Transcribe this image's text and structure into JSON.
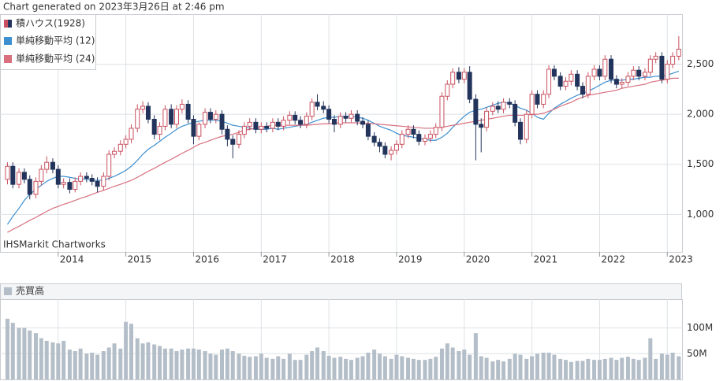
{
  "header": "Chart generated on 2023年3月26日 at 2:46 pm",
  "chart_data": [
    {
      "type": "candlestick",
      "name": "積ハウス(1928)",
      "up_color": "#c8505f",
      "down_color": "#23345c",
      "source": "IHSMarkit Chartworks",
      "x": [
        2013.25,
        2013.33,
        2013.42,
        2013.5,
        2013.58,
        2013.67,
        2013.75,
        2013.83,
        2013.92,
        2014,
        2014.08,
        2014.17,
        2014.25,
        2014.33,
        2014.42,
        2014.5,
        2014.58,
        2014.67,
        2014.75,
        2014.83,
        2014.92,
        2015,
        2015.08,
        2015.17,
        2015.25,
        2015.33,
        2015.42,
        2015.5,
        2015.58,
        2015.67,
        2015.75,
        2015.83,
        2015.92,
        2016,
        2016.08,
        2016.17,
        2016.25,
        2016.33,
        2016.42,
        2016.5,
        2016.58,
        2016.67,
        2016.75,
        2016.83,
        2016.92,
        2017,
        2017.08,
        2017.17,
        2017.25,
        2017.33,
        2017.42,
        2017.5,
        2017.58,
        2017.67,
        2017.75,
        2017.83,
        2017.92,
        2018,
        2018.08,
        2018.17,
        2018.25,
        2018.33,
        2018.42,
        2018.5,
        2018.58,
        2018.67,
        2018.75,
        2018.83,
        2018.92,
        2019,
        2019.08,
        2019.17,
        2019.25,
        2019.33,
        2019.42,
        2019.5,
        2019.58,
        2019.67,
        2019.75,
        2019.83,
        2019.92,
        2020,
        2020.08,
        2020.17,
        2020.25,
        2020.33,
        2020.42,
        2020.5,
        2020.58,
        2020.67,
        2020.75,
        2020.83,
        2020.92,
        2021,
        2021.08,
        2021.17,
        2021.25,
        2021.33,
        2021.42,
        2021.5,
        2021.58,
        2021.67,
        2021.75,
        2021.83,
        2021.92,
        2022,
        2022.08,
        2022.17,
        2022.25,
        2022.33,
        2022.42,
        2022.5,
        2022.58,
        2022.67,
        2022.75,
        2022.83,
        2022.92,
        2023,
        2023.08,
        2023.17
      ],
      "open": [
        1350,
        1480,
        1300,
        1420,
        1350,
        1200,
        1330,
        1450,
        1520,
        1450,
        1300,
        1320,
        1250,
        1330,
        1380,
        1360,
        1330,
        1280,
        1380,
        1600,
        1630,
        1700,
        1750,
        1860,
        2050,
        2080,
        1950,
        1800,
        1880,
        2050,
        1900,
        2050,
        2100,
        1950,
        1780,
        1900,
        2020,
        1950,
        2000,
        1850,
        1750,
        1700,
        1800,
        1880,
        1920,
        1850,
        1880,
        1860,
        1920,
        1880,
        1940,
        1990,
        1940,
        1900,
        1980,
        2120,
        2080,
        2050,
        1950,
        1900,
        1980,
        1960,
        2000,
        1930,
        1900,
        1780,
        1720,
        1680,
        1600,
        1640,
        1700,
        1800,
        1850,
        1800,
        1730,
        1760,
        1800,
        1870,
        2180,
        2300,
        2420,
        2350,
        2420,
        2150,
        1900,
        1870,
        2030,
        2080,
        2050,
        2120,
        2100,
        1920,
        1750,
        2000,
        2200,
        2100,
        2200,
        2450,
        2380,
        2280,
        2330,
        2400,
        2280,
        2200,
        2380,
        2450,
        2380,
        2550,
        2350,
        2300,
        2320,
        2380,
        2440,
        2380,
        2420,
        2550,
        2580,
        2350,
        2500,
        2580
      ],
      "high": [
        1520,
        1520,
        1460,
        1460,
        1390,
        1370,
        1490,
        1580,
        1560,
        1490,
        1360,
        1360,
        1370,
        1420,
        1420,
        1400,
        1370,
        1420,
        1640,
        1670,
        1740,
        1790,
        1900,
        2100,
        2130,
        2120,
        1990,
        1920,
        2090,
        2100,
        2090,
        2150,
        2140,
        1990,
        1920,
        2060,
        2060,
        2040,
        2040,
        1890,
        1790,
        1840,
        1920,
        1960,
        1960,
        1920,
        1920,
        1960,
        1960,
        1980,
        2030,
        2030,
        1980,
        2020,
        2160,
        2200,
        2130,
        2090,
        1990,
        2020,
        2020,
        2040,
        2040,
        1970,
        1940,
        1820,
        1760,
        1720,
        1680,
        1740,
        1840,
        1890,
        1890,
        1840,
        1800,
        1840,
        1910,
        2220,
        2340,
        2460,
        2470,
        2460,
        2480,
        2200,
        1960,
        2070,
        2120,
        2130,
        2160,
        2160,
        2140,
        1960,
        2040,
        2240,
        2240,
        2240,
        2490,
        2490,
        2420,
        2370,
        2440,
        2440,
        2320,
        2420,
        2490,
        2490,
        2590,
        2590,
        2390,
        2360,
        2420,
        2480,
        2480,
        2460,
        2590,
        2620,
        2620,
        2540,
        2620,
        2780
      ],
      "low": [
        1300,
        1260,
        1260,
        1310,
        1150,
        1160,
        1290,
        1410,
        1410,
        1260,
        1260,
        1210,
        1220,
        1290,
        1320,
        1290,
        1220,
        1240,
        1340,
        1560,
        1590,
        1660,
        1710,
        1820,
        2010,
        1910,
        1750,
        1740,
        1840,
        1860,
        1860,
        2010,
        1910,
        1700,
        1740,
        1860,
        1910,
        1910,
        1800,
        1680,
        1560,
        1660,
        1760,
        1840,
        1810,
        1810,
        1820,
        1820,
        1840,
        1840,
        1900,
        1900,
        1860,
        1860,
        1940,
        2040,
        2010,
        1910,
        1820,
        1860,
        1920,
        1920,
        1890,
        1860,
        1740,
        1680,
        1620,
        1560,
        1540,
        1600,
        1660,
        1760,
        1760,
        1690,
        1690,
        1720,
        1760,
        1830,
        2140,
        2260,
        2310,
        2310,
        2110,
        1540,
        1620,
        1830,
        1990,
        2010,
        2010,
        2060,
        1880,
        1700,
        1710,
        1960,
        2060,
        2060,
        2160,
        2340,
        2240,
        2240,
        2290,
        2240,
        2160,
        2160,
        2340,
        2340,
        2340,
        2310,
        2260,
        2260,
        2280,
        2340,
        2340,
        2340,
        2380,
        2510,
        2310,
        2310,
        2460,
        2540
      ],
      "close": [
        1480,
        1300,
        1420,
        1350,
        1200,
        1330,
        1450,
        1520,
        1450,
        1300,
        1320,
        1250,
        1330,
        1380,
        1360,
        1330,
        1280,
        1380,
        1600,
        1630,
        1700,
        1750,
        1860,
        2050,
        2080,
        1950,
        1800,
        1880,
        2050,
        1900,
        2050,
        2100,
        1950,
        1780,
        1900,
        2020,
        1950,
        2000,
        1850,
        1750,
        1700,
        1800,
        1880,
        1920,
        1850,
        1880,
        1860,
        1920,
        1880,
        1940,
        1990,
        1940,
        1900,
        1980,
        2120,
        2080,
        2050,
        1950,
        1900,
        1980,
        1960,
        2000,
        1930,
        1900,
        1780,
        1720,
        1680,
        1600,
        1640,
        1700,
        1800,
        1850,
        1800,
        1730,
        1760,
        1800,
        1870,
        2180,
        2300,
        2420,
        2350,
        2420,
        2150,
        1900,
        1870,
        2030,
        2080,
        2050,
        2120,
        2100,
        1920,
        1750,
        2000,
        2200,
        2100,
        2200,
        2450,
        2380,
        2280,
        2330,
        2400,
        2280,
        2200,
        2380,
        2450,
        2380,
        2550,
        2350,
        2300,
        2320,
        2380,
        2440,
        2380,
        2420,
        2550,
        2580,
        2350,
        2500,
        2580,
        2650
      ],
      "series": [
        {
          "name": "単純移動平均 (12)",
          "color": "#3d8fd0",
          "values": [
            900,
            980,
            1060,
            1140,
            1200,
            1250,
            1290,
            1330,
            1360,
            1380,
            1380,
            1370,
            1360,
            1350,
            1350,
            1340,
            1340,
            1340,
            1360,
            1380,
            1410,
            1440,
            1480,
            1540,
            1600,
            1650,
            1690,
            1730,
            1770,
            1810,
            1850,
            1880,
            1900,
            1920,
            1930,
            1940,
            1940,
            1940,
            1930,
            1910,
            1890,
            1880,
            1870,
            1860,
            1850,
            1850,
            1850,
            1860,
            1850,
            1860,
            1870,
            1880,
            1890,
            1900,
            1920,
            1940,
            1960,
            1970,
            1970,
            1980,
            1980,
            1980,
            1970,
            1960,
            1940,
            1910,
            1880,
            1860,
            1840,
            1810,
            1790,
            1780,
            1770,
            1760,
            1750,
            1740,
            1740,
            1770,
            1810,
            1870,
            1930,
            1980,
            2020,
            2040,
            2050,
            2070,
            2090,
            2110,
            2120,
            2110,
            2090,
            2060,
            2040,
            2010,
            1970,
            1950,
            2010,
            2060,
            2100,
            2130,
            2160,
            2190,
            2210,
            2230,
            2260,
            2290,
            2320,
            2340,
            2340,
            2340,
            2350,
            2350,
            2360,
            2370,
            2370,
            2380,
            2380,
            2390,
            2410,
            2430
          ]
        },
        {
          "name": "単純移動平均 (24)",
          "color": "#d8707f",
          "values": [
            820,
            850,
            880,
            910,
            940,
            970,
            1000,
            1030,
            1060,
            1080,
            1100,
            1120,
            1140,
            1160,
            1180,
            1200,
            1220,
            1240,
            1260,
            1280,
            1300,
            1320,
            1340,
            1370,
            1400,
            1430,
            1460,
            1490,
            1520,
            1550,
            1580,
            1610,
            1640,
            1670,
            1700,
            1720,
            1740,
            1760,
            1780,
            1790,
            1800,
            1820,
            1840,
            1850,
            1860,
            1870,
            1880,
            1890,
            1890,
            1890,
            1890,
            1890,
            1890,
            1890,
            1895,
            1900,
            1905,
            1905,
            1910,
            1915,
            1915,
            1915,
            1915,
            1910,
            1910,
            1905,
            1900,
            1895,
            1890,
            1885,
            1880,
            1875,
            1870,
            1865,
            1860,
            1860,
            1860,
            1870,
            1880,
            1890,
            1900,
            1910,
            1920,
            1930,
            1940,
            1950,
            1960,
            1970,
            1980,
            1990,
            1990,
            1990,
            1990,
            2000,
            2000,
            2010,
            2030,
            2050,
            2080,
            2100,
            2120,
            2150,
            2170,
            2190,
            2200,
            2210,
            2220,
            2230,
            2240,
            2260,
            2270,
            2280,
            2290,
            2300,
            2320,
            2330,
            2340,
            2350,
            2360,
            2360
          ]
        }
      ],
      "xlim": [
        2013.14,
        2023.23
      ],
      "xticks": [
        2014,
        2015,
        2016,
        2017,
        2018,
        2019,
        2020,
        2021,
        2022,
        2023
      ],
      "ylim": [
        625,
        3000
      ],
      "yticks": [
        {
          "value": 1000,
          "label": "1,000"
        },
        {
          "value": 1500,
          "label": "1,500"
        },
        {
          "value": 2000,
          "label": "2,000"
        },
        {
          "value": 2500,
          "label": "2,500"
        }
      ],
      "grid": true
    },
    {
      "type": "bar",
      "name": "売買高",
      "color": "#b4bec8",
      "x": [
        2013.25,
        2013.33,
        2013.42,
        2013.5,
        2013.58,
        2013.67,
        2013.75,
        2013.83,
        2013.92,
        2014,
        2014.08,
        2014.17,
        2014.25,
        2014.33,
        2014.42,
        2014.5,
        2014.58,
        2014.67,
        2014.75,
        2014.83,
        2014.92,
        2015,
        2015.08,
        2015.17,
        2015.25,
        2015.33,
        2015.42,
        2015.5,
        2015.58,
        2015.67,
        2015.75,
        2015.83,
        2015.92,
        2016,
        2016.08,
        2016.17,
        2016.25,
        2016.33,
        2016.42,
        2016.5,
        2016.58,
        2016.67,
        2016.75,
        2016.83,
        2016.92,
        2017,
        2017.08,
        2017.17,
        2017.25,
        2017.33,
        2017.42,
        2017.5,
        2017.58,
        2017.67,
        2017.75,
        2017.83,
        2017.92,
        2018,
        2018.08,
        2018.17,
        2018.25,
        2018.33,
        2018.42,
        2018.5,
        2018.58,
        2018.67,
        2018.75,
        2018.83,
        2018.92,
        2019,
        2019.08,
        2019.17,
        2019.25,
        2019.33,
        2019.42,
        2019.5,
        2019.58,
        2019.67,
        2019.75,
        2019.83,
        2019.92,
        2020,
        2020.08,
        2020.17,
        2020.25,
        2020.33,
        2020.42,
        2020.5,
        2020.58,
        2020.67,
        2020.75,
        2020.83,
        2020.92,
        2021,
        2021.08,
        2021.17,
        2021.25,
        2021.33,
        2021.42,
        2021.5,
        2021.58,
        2021.67,
        2021.75,
        2021.83,
        2021.92,
        2022,
        2022.08,
        2022.17,
        2022.25,
        2022.33,
        2022.42,
        2022.5,
        2022.58,
        2022.67,
        2022.75,
        2022.83,
        2022.92,
        2023,
        2023.08,
        2023.17
      ],
      "values": [
        118,
        110,
        100,
        100,
        95,
        90,
        80,
        75,
        72,
        70,
        75,
        58,
        55,
        60,
        50,
        52,
        48,
        55,
        62,
        70,
        60,
        112,
        108,
        80,
        70,
        72,
        68,
        65,
        60,
        60,
        55,
        58,
        60,
        60,
        58,
        55,
        50,
        48,
        58,
        60,
        55,
        50,
        46,
        44,
        45,
        50,
        42,
        40,
        45,
        40,
        50,
        38,
        38,
        48,
        55,
        62,
        55,
        46,
        42,
        44,
        40,
        38,
        42,
        45,
        52,
        58,
        50,
        45,
        40,
        48,
        45,
        42,
        40,
        38,
        38,
        40,
        44,
        60,
        70,
        62,
        55,
        58,
        48,
        90,
        45,
        42,
        35,
        38,
        35,
        40,
        50,
        48,
        40,
        45,
        50,
        52,
        52,
        48,
        40,
        38,
        34,
        36,
        36,
        40,
        38,
        38,
        40,
        42,
        38,
        42,
        44,
        40,
        38,
        42,
        80,
        40,
        50,
        48,
        52,
        45
      ],
      "xlim": [
        2013.14,
        2023.23
      ],
      "xticks": [
        2014,
        2015,
        2016,
        2017,
        2018,
        2019,
        2020,
        2021,
        2022,
        2023
      ],
      "ylim": [
        0,
        156
      ],
      "yticks": [
        {
          "value": 50,
          "label": "50M"
        },
        {
          "value": 100,
          "label": "100M"
        }
      ],
      "grid": true
    }
  ]
}
